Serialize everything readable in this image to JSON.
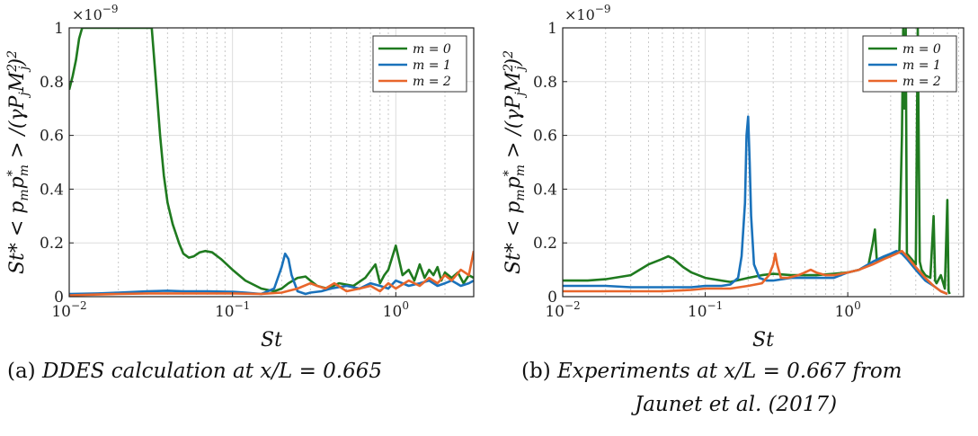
{
  "chart_data": [
    {
      "type": "line",
      "caption_label": "(a)",
      "caption_line1": "DDES calculation at x/L = 0.665",
      "caption_line2": "",
      "xlabel": "St",
      "ylabel": "St* < p_m p*_m > /(γ P_j M_j²)²",
      "ylabel_main": "St* < p",
      "ylabel_sub1": "m",
      "ylabel_mid": "p",
      "ylabel_sup1": "*",
      "ylabel_sub2": "m",
      "ylabel_end": " > /(γP",
      "ylabel_sub3": "j",
      "ylabel_m": "M",
      "ylabel_sup2": "2",
      "ylabel_sub4": "j",
      "ylabel_close": ")",
      "ylabel_sup3": "2",
      "y_multiplier": "×10",
      "y_multiplier_exp": "−9",
      "xscale": "log",
      "xlim": [
        0.01,
        3
      ],
      "ylim": [
        0,
        1
      ],
      "yticks": [
        "0",
        "0.2",
        "0.4",
        "0.6",
        "0.8",
        "1"
      ],
      "xticks": [
        "10",
        "10",
        "10"
      ],
      "xtick_exps": [
        "−2",
        "−1",
        "0"
      ],
      "grid": true,
      "legend_position": "top-right",
      "legend": [
        "m = 0",
        "m = 1",
        "m = 2"
      ],
      "series": [
        {
          "name": "m = 0",
          "color": "#1f7a1f",
          "x": [
            0.01,
            0.0105,
            0.011,
            0.0115,
            0.012,
            0.013,
            0.015,
            0.02,
            0.025,
            0.029,
            0.032,
            0.034,
            0.036,
            0.038,
            0.04,
            0.043,
            0.047,
            0.05,
            0.054,
            0.058,
            0.063,
            0.068,
            0.075,
            0.085,
            0.1,
            0.12,
            0.15,
            0.18,
            0.2,
            0.22,
            0.25,
            0.28,
            0.3,
            0.33,
            0.38,
            0.45,
            0.55,
            0.65,
            0.75,
            0.8,
            0.85,
            0.9,
            1.0,
            1.1,
            1.2,
            1.3,
            1.4,
            1.5,
            1.6,
            1.7,
            1.8,
            1.9,
            2.0,
            2.2,
            2.4,
            2.6,
            2.8,
            3.0
          ],
          "y": [
            0.77,
            0.82,
            0.88,
            0.96,
            1.0,
            1.0,
            1.0,
            1.0,
            1.0,
            1.0,
            1.0,
            0.8,
            0.6,
            0.45,
            0.35,
            0.27,
            0.2,
            0.16,
            0.145,
            0.15,
            0.165,
            0.17,
            0.165,
            0.14,
            0.1,
            0.06,
            0.03,
            0.02,
            0.03,
            0.05,
            0.07,
            0.075,
            0.06,
            0.04,
            0.03,
            0.05,
            0.04,
            0.07,
            0.12,
            0.05,
            0.08,
            0.1,
            0.19,
            0.08,
            0.1,
            0.06,
            0.12,
            0.07,
            0.1,
            0.08,
            0.11,
            0.06,
            0.09,
            0.07,
            0.09,
            0.05,
            0.08,
            0.07
          ]
        },
        {
          "name": "m = 1",
          "color": "#1a72bb",
          "x": [
            0.01,
            0.015,
            0.02,
            0.03,
            0.04,
            0.05,
            0.07,
            0.1,
            0.12,
            0.15,
            0.18,
            0.2,
            0.21,
            0.22,
            0.23,
            0.25,
            0.28,
            0.3,
            0.35,
            0.4,
            0.5,
            0.6,
            0.7,
            0.8,
            0.9,
            1.0,
            1.2,
            1.4,
            1.6,
            1.8,
            2.0,
            2.2,
            2.5,
            2.8,
            3.0
          ],
          "y": [
            0.01,
            0.012,
            0.015,
            0.02,
            0.022,
            0.02,
            0.02,
            0.018,
            0.015,
            0.01,
            0.03,
            0.11,
            0.16,
            0.14,
            0.08,
            0.02,
            0.01,
            0.015,
            0.02,
            0.03,
            0.04,
            0.03,
            0.05,
            0.04,
            0.03,
            0.06,
            0.04,
            0.05,
            0.06,
            0.04,
            0.05,
            0.06,
            0.04,
            0.05,
            0.06
          ]
        },
        {
          "name": "m = 2",
          "color": "#e8662b",
          "x": [
            0.01,
            0.015,
            0.02,
            0.03,
            0.05,
            0.08,
            0.1,
            0.15,
            0.2,
            0.25,
            0.3,
            0.33,
            0.37,
            0.42,
            0.5,
            0.6,
            0.7,
            0.8,
            0.9,
            1.0,
            1.2,
            1.4,
            1.6,
            1.8,
            2.0,
            2.2,
            2.5,
            2.8,
            3.0
          ],
          "y": [
            0.005,
            0.008,
            0.01,
            0.012,
            0.012,
            0.012,
            0.012,
            0.01,
            0.015,
            0.03,
            0.05,
            0.04,
            0.03,
            0.05,
            0.02,
            0.03,
            0.04,
            0.02,
            0.05,
            0.03,
            0.06,
            0.04,
            0.07,
            0.05,
            0.08,
            0.06,
            0.1,
            0.08,
            0.17
          ]
        }
      ]
    },
    {
      "type": "line",
      "caption_label": "(b)",
      "caption_line1": "Experiments at x/L = 0.667 from",
      "caption_line2": "Jaunet et al. (2017)",
      "xlabel": "St",
      "ylabel": "St* < p_m p*_m > /(γ P_j M_j²)²",
      "ylabel_main": "St* < p",
      "ylabel_sub1": "m",
      "ylabel_mid": "p",
      "ylabel_sup1": "*",
      "ylabel_sub2": "m",
      "ylabel_end": " > /(γP",
      "ylabel_sub3": "j",
      "ylabel_m": "M",
      "ylabel_sup2": "2",
      "ylabel_sub4": "j",
      "ylabel_close": ")",
      "ylabel_sup3": "2",
      "y_multiplier": "×10",
      "y_multiplier_exp": "−9",
      "xscale": "log",
      "xlim": [
        0.01,
        6.5
      ],
      "ylim": [
        0,
        1
      ],
      "yticks": [
        "0",
        "0.2",
        "0.4",
        "0.6",
        "0.8",
        "1"
      ],
      "xticks": [
        "10",
        "10",
        "10"
      ],
      "xtick_exps": [
        "−2",
        "−1",
        "0"
      ],
      "grid": true,
      "legend_position": "top-right",
      "legend": [
        "m = 0",
        "m = 1",
        "m = 2"
      ],
      "series": [
        {
          "name": "m = 0",
          "color": "#1f7a1f",
          "x": [
            0.01,
            0.015,
            0.02,
            0.03,
            0.04,
            0.05,
            0.055,
            0.06,
            0.07,
            0.08,
            0.1,
            0.13,
            0.15,
            0.2,
            0.25,
            0.3,
            0.4,
            0.5,
            0.6,
            0.8,
            1.0,
            1.2,
            1.4,
            1.5,
            1.55,
            1.6,
            1.7,
            1.9,
            2.1,
            2.3,
            2.4,
            2.45,
            2.5,
            2.55,
            2.6,
            2.8,
            3.0,
            3.1,
            3.2,
            3.3,
            3.5,
            3.8,
            4.0,
            4.1,
            4.2,
            4.5,
            4.8,
            5.0,
            5.1,
            5.2
          ],
          "y": [
            0.06,
            0.06,
            0.065,
            0.08,
            0.12,
            0.14,
            0.15,
            0.14,
            0.11,
            0.09,
            0.07,
            0.06,
            0.055,
            0.07,
            0.08,
            0.085,
            0.08,
            0.08,
            0.08,
            0.085,
            0.09,
            0.1,
            0.12,
            0.2,
            0.25,
            0.13,
            0.14,
            0.15,
            0.16,
            0.17,
            0.6,
            1.0,
            0.7,
            1.0,
            0.16,
            0.14,
            0.12,
            1.0,
            0.13,
            0.1,
            0.08,
            0.07,
            0.3,
            0.06,
            0.05,
            0.08,
            0.03,
            0.36,
            0.02,
            0.01
          ]
        },
        {
          "name": "m = 1",
          "color": "#1a72bb",
          "x": [
            0.01,
            0.015,
            0.02,
            0.03,
            0.05,
            0.08,
            0.1,
            0.13,
            0.15,
            0.17,
            0.18,
            0.19,
            0.195,
            0.2,
            0.205,
            0.21,
            0.22,
            0.24,
            0.27,
            0.3,
            0.4,
            0.5,
            0.6,
            0.8,
            1.0,
            1.2,
            1.5,
            1.8,
            2.0,
            2.2,
            2.4,
            2.6,
            3.0,
            3.5,
            4.0,
            4.5,
            5.0
          ],
          "y": [
            0.04,
            0.04,
            0.04,
            0.035,
            0.035,
            0.035,
            0.04,
            0.04,
            0.045,
            0.07,
            0.15,
            0.35,
            0.6,
            0.67,
            0.5,
            0.3,
            0.12,
            0.07,
            0.06,
            0.06,
            0.07,
            0.07,
            0.07,
            0.07,
            0.09,
            0.1,
            0.13,
            0.15,
            0.16,
            0.17,
            0.16,
            0.14,
            0.1,
            0.06,
            0.04,
            0.02,
            0.01
          ]
        },
        {
          "name": "m = 2",
          "color": "#e8662b",
          "x": [
            0.01,
            0.015,
            0.02,
            0.03,
            0.05,
            0.08,
            0.1,
            0.15,
            0.2,
            0.25,
            0.28,
            0.3,
            0.31,
            0.32,
            0.34,
            0.38,
            0.45,
            0.5,
            0.55,
            0.6,
            0.7,
            0.8,
            1.0,
            1.2,
            1.5,
            1.8,
            2.0,
            2.2,
            2.4,
            2.6,
            3.0,
            3.5,
            4.0,
            4.5,
            5.0
          ],
          "y": [
            0.02,
            0.02,
            0.02,
            0.02,
            0.02,
            0.025,
            0.03,
            0.03,
            0.04,
            0.05,
            0.08,
            0.12,
            0.16,
            0.12,
            0.07,
            0.07,
            0.08,
            0.09,
            0.1,
            0.09,
            0.08,
            0.08,
            0.09,
            0.1,
            0.12,
            0.14,
            0.15,
            0.16,
            0.17,
            0.15,
            0.11,
            0.07,
            0.04,
            0.02,
            0.01
          ]
        }
      ]
    }
  ]
}
